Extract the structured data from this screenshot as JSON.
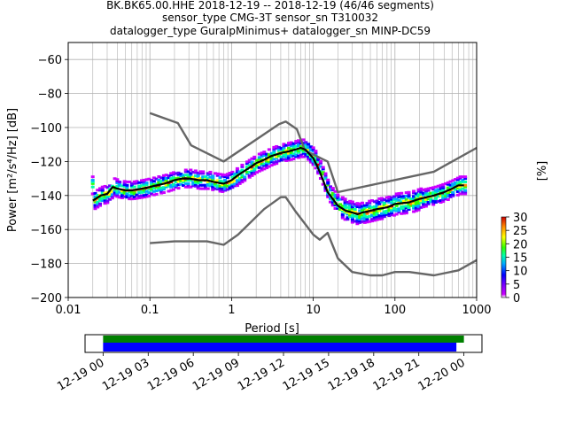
{
  "title_lines": [
    "BK.BK65.00.HHE   2018-12-19 -- 2018-12-19  (46/46 segments)",
    "sensor_type CMG-3T sensor_sn T310032",
    "datalogger_type GuralpMinimus+ datalogger_sn MINP-DC59"
  ],
  "chart_data": [
    {
      "type": "heatmap",
      "xlabel": "Period [s]",
      "ylabel": "Power [m²/s⁴/Hz] [dB]",
      "xscale": "log",
      "xlim": [
        0.01,
        1000
      ],
      "ylim": [
        -200,
        -50
      ],
      "x_ticks": [
        0.01,
        0.1,
        1,
        10,
        100,
        1000
      ],
      "x_tick_labels": [
        "0.01",
        "0.1",
        "1",
        "10",
        "100",
        "1000"
      ],
      "y_ticks": [
        -200,
        -180,
        -160,
        -140,
        -120,
        -100,
        -80,
        -60
      ],
      "y_tick_labels": [
        "−200",
        "−180",
        "−160",
        "−140",
        "−120",
        "−100",
        "−80",
        "−60"
      ],
      "grid": true,
      "series": [
        {
          "style": "black-line",
          "x": [
            0.02,
            0.025,
            0.03,
            0.035,
            0.04,
            0.05,
            0.06,
            0.08,
            0.1,
            0.12,
            0.15,
            0.2,
            0.25,
            0.3,
            0.4,
            0.5,
            0.6,
            0.8,
            1.0,
            1.2,
            1.5,
            2,
            2.5,
            3,
            4,
            5,
            6,
            7,
            8,
            10,
            12,
            15,
            20,
            25,
            30,
            35,
            40,
            50,
            60,
            80,
            100,
            150,
            200,
            300,
            400,
            500,
            600,
            700
          ],
          "y": [
            -143,
            -140,
            -139,
            -135,
            -136,
            -137,
            -137,
            -136,
            -135,
            -134,
            -133,
            -131,
            -130,
            -130,
            -131,
            -131,
            -132,
            -133,
            -131,
            -128,
            -125,
            -121,
            -119,
            -117,
            -115,
            -114,
            -113,
            -112,
            -113,
            -118,
            -126,
            -138,
            -146,
            -149,
            -150,
            -151,
            -150,
            -149,
            -148,
            -147,
            -145,
            -144,
            -142,
            -140,
            -138,
            -136,
            -134,
            -134
          ]
        },
        {
          "style": "nlnm",
          "x": [
            0.1,
            0.2,
            0.3,
            0.5,
            0.8,
            1.2,
            2.5,
            4.0,
            4.6,
            6.0,
            10,
            12,
            15,
            20,
            30,
            50,
            70,
            100,
            150,
            300,
            600,
            1000
          ],
          "y": [
            -168,
            -167,
            -167,
            -167,
            -169,
            -163,
            -148,
            -141,
            -141,
            -149,
            -163,
            -166,
            -162,
            -177,
            -185,
            -187,
            -187,
            -185,
            -185,
            -187,
            -184,
            -178
          ]
        },
        {
          "style": "nhnm",
          "x": [
            0.1,
            0.22,
            0.32,
            0.8,
            3.8,
            4.6,
            6.3,
            7.9,
            15,
            20,
            300,
            1000
          ],
          "y": [
            -91.5,
            -97.4,
            -110.5,
            -120,
            -98,
            -96.5,
            -101,
            -113.5,
            -120,
            -138,
            -126,
            -112
          ]
        }
      ]
    },
    {
      "type": "colorbar",
      "label": "[%]",
      "range": [
        0,
        30
      ],
      "ticks": [
        0,
        5,
        10,
        15,
        20,
        25,
        30
      ],
      "tick_labels": [
        "0",
        "5",
        "10",
        "15",
        "20",
        "25",
        "30"
      ]
    },
    {
      "type": "timeline",
      "tick_labels": [
        "12-19 00",
        "12-19 03",
        "12-19 06",
        "12-19 09",
        "12-19 12",
        "12-19 15",
        "12-19 18",
        "12-19 21",
        "12-20 00"
      ],
      "tick_hours": [
        0,
        3,
        6,
        9,
        12,
        15,
        18,
        21,
        24
      ],
      "range_hours": [
        -1.2,
        25.2
      ],
      "bars": [
        {
          "color": "#008000",
          "start_hours": 0,
          "end_hours": 24
        },
        {
          "color": "#0000ff",
          "start_hours": 0,
          "end_hours": 23.5
        }
      ]
    }
  ]
}
